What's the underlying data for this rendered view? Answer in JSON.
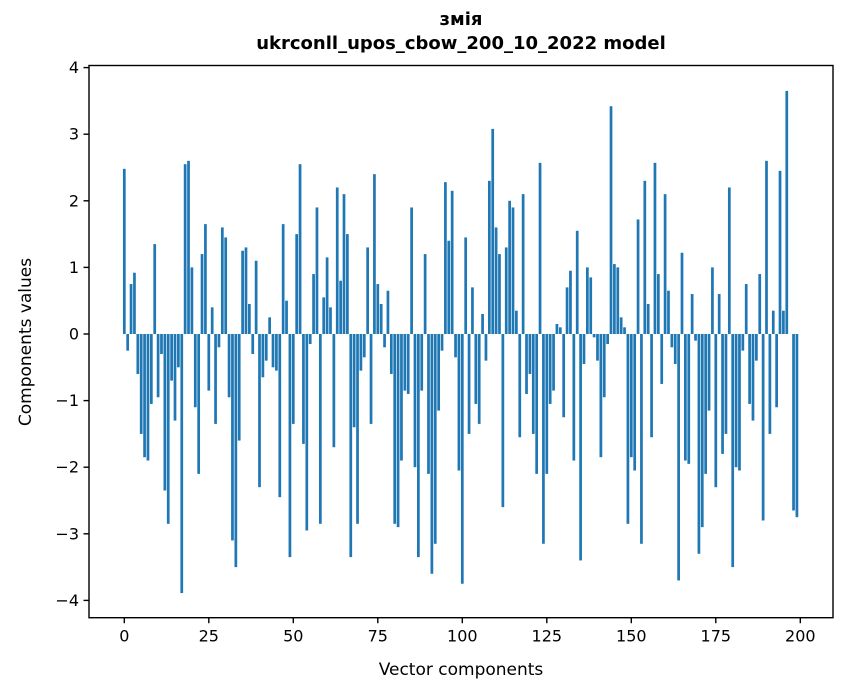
{
  "figure": {
    "title_line1": "змія",
    "title_line2": "ukrconll_upos_cbow_200_10_2022 model"
  },
  "chart_data": {
    "type": "bar",
    "title": "змія",
    "subtitle": "ukrconll_upos_cbow_200_10_2022 model",
    "xlabel": "Vector components",
    "ylabel": "Components values",
    "x_tick_labels": [
      "0",
      "25",
      "50",
      "75",
      "100",
      "125",
      "150",
      "175",
      "200"
    ],
    "x_tick_values": [
      0,
      25,
      50,
      75,
      100,
      125,
      150,
      175,
      200
    ],
    "y_tick_labels": [
      "−4",
      "−3",
      "−2",
      "−1",
      "0",
      "1",
      "2",
      "3",
      "4"
    ],
    "y_tick_values": [
      -4,
      -3,
      -2,
      -1,
      0,
      1,
      2,
      3,
      4
    ],
    "xlim": [
      -10.4,
      209.4
    ],
    "ylim": [
      -4.27,
      4.03
    ],
    "grid": false,
    "legend": "none",
    "bar_color": "#1f77b4",
    "n_bars": 200,
    "values": [
      2.48,
      -0.25,
      0.75,
      0.92,
      -0.6,
      -1.5,
      -1.85,
      -1.9,
      -1.05,
      1.35,
      -0.95,
      -0.3,
      -2.35,
      -2.85,
      -0.7,
      -1.3,
      -0.5,
      -3.89,
      2.55,
      2.6,
      1.0,
      -1.1,
      -2.1,
      1.2,
      1.65,
      -0.85,
      0.4,
      -1.35,
      -0.2,
      1.6,
      1.45,
      -0.95,
      -3.1,
      -3.5,
      -1.6,
      1.25,
      1.3,
      0.45,
      -0.3,
      1.1,
      -2.3,
      -0.65,
      -0.4,
      0.25,
      -0.5,
      -0.55,
      -2.45,
      1.65,
      0.5,
      -3.35,
      -1.35,
      1.5,
      2.55,
      -1.65,
      -2.95,
      -0.15,
      0.9,
      1.9,
      -2.85,
      0.55,
      1.15,
      0.4,
      -1.7,
      2.2,
      0.8,
      2.1,
      1.5,
      -3.35,
      -1.4,
      -2.85,
      -0.55,
      -0.35,
      1.3,
      -1.35,
      2.4,
      0.75,
      0.45,
      -0.2,
      0.65,
      -0.6,
      -2.85,
      -2.9,
      -1.9,
      -0.85,
      -0.9,
      1.9,
      -2.0,
      -3.35,
      -0.85,
      1.2,
      -2.1,
      -3.6,
      -3.15,
      -1.15,
      -0.25,
      2.28,
      1.4,
      2.15,
      -0.35,
      -2.05,
      -3.75,
      1.45,
      -1.5,
      0.7,
      -1.05,
      -1.35,
      0.3,
      -0.4,
      2.3,
      3.08,
      1.6,
      1.2,
      -2.6,
      1.3,
      2.0,
      1.9,
      0.35,
      -1.55,
      2.1,
      -0.9,
      -0.6,
      -1.5,
      -2.1,
      2.57,
      -3.15,
      -2.1,
      -1.05,
      -0.85,
      0.15,
      0.1,
      -1.25,
      0.7,
      0.95,
      -1.9,
      1.55,
      -3.4,
      -0.45,
      1.0,
      0.85,
      -0.05,
      -0.4,
      -1.85,
      -0.95,
      -0.15,
      3.42,
      1.05,
      1.0,
      0.25,
      0.1,
      -2.85,
      -1.85,
      -2.05,
      1.72,
      -3.15,
      2.3,
      0.45,
      -1.55,
      2.57,
      0.9,
      -0.75,
      2.1,
      0.65,
      -0.2,
      -0.45,
      -3.7,
      1.22,
      -1.9,
      -1.95,
      0.6,
      -0.1,
      -3.3,
      -2.9,
      -2.1,
      -1.15,
      1.0,
      -2.3,
      0.6,
      -1.8,
      -1.5,
      2.2,
      -3.5,
      -2.0,
      -2.05,
      -0.25,
      0.75,
      -1.05,
      -1.3,
      -0.4,
      0.9,
      -2.8,
      2.6,
      -1.5,
      0.35,
      -1.1,
      2.45,
      0.35,
      3.65,
      0.0,
      -2.65,
      -2.75
    ]
  }
}
